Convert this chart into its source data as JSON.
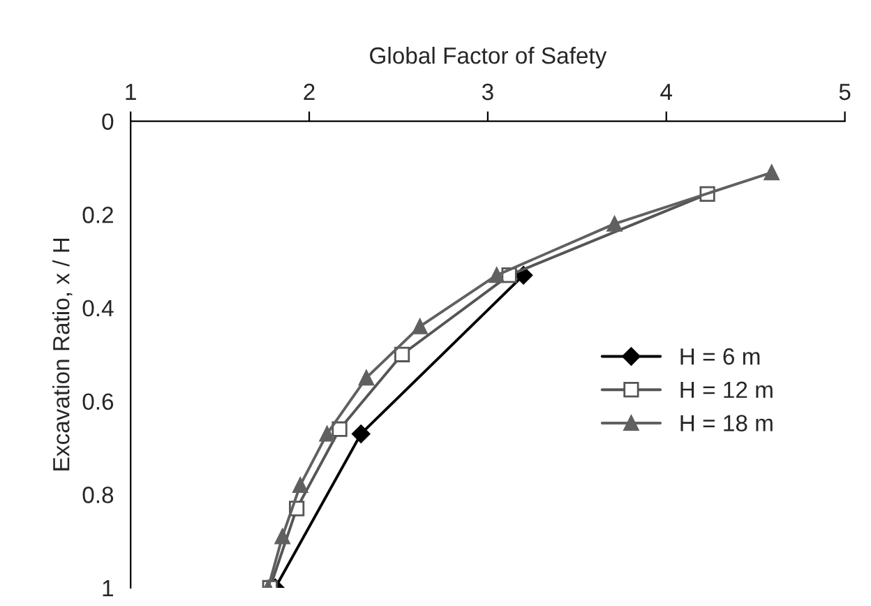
{
  "chart_data": {
    "type": "line",
    "xlabel": "Global Factor of Safety",
    "ylabel": "Excavation Ratio, x / H",
    "xlim": [
      1,
      5
    ],
    "xticks": [
      1,
      2,
      3,
      4,
      5
    ],
    "ylim": [
      1,
      0
    ],
    "yticks": [
      0,
      0.2,
      0.4,
      0.6,
      0.8,
      1
    ],
    "grid": false,
    "legend": "right",
    "series": [
      {
        "name": "H = 6 m",
        "color": "#000000",
        "marker": "diamond",
        "x": [
          3.2,
          2.29,
          1.81
        ],
        "values": [
          0.33,
          0.67,
          1.0
        ]
      },
      {
        "name": "H = 12 m",
        "color": "#555555",
        "marker": "square",
        "x": [
          4.23,
          3.12,
          2.52,
          2.17,
          1.93,
          1.78
        ],
        "values": [
          0.156,
          0.33,
          0.5,
          0.66,
          0.83,
          1.0
        ]
      },
      {
        "name": "H = 18 m",
        "color": "#606060",
        "marker": "triangle",
        "x": [
          4.59,
          3.71,
          3.05,
          2.62,
          2.32,
          2.1,
          1.95,
          1.85,
          1.77
        ],
        "values": [
          0.11,
          0.22,
          0.33,
          0.44,
          0.55,
          0.67,
          0.78,
          0.89,
          1.0
        ]
      }
    ]
  }
}
